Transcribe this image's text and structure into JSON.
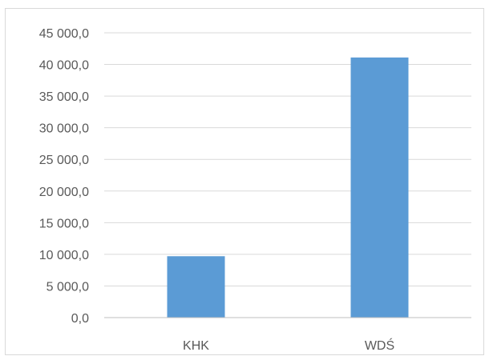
{
  "chart_data": {
    "type": "bar",
    "categories": [
      "KHK",
      "WDŚ"
    ],
    "values": [
      9700,
      41100
    ],
    "ylim": [
      0,
      45000
    ],
    "y_ticks": [
      0,
      5000,
      10000,
      15000,
      20000,
      25000,
      30000,
      35000,
      40000,
      45000
    ],
    "y_tick_labels": [
      "0,0",
      "5 000,0",
      "10 000,0",
      "15 000,0",
      "20 000,0",
      "25 000,0",
      "30 000,0",
      "35 000,0",
      "40 000,0",
      "45 000,0"
    ],
    "grid": true,
    "legend": "none",
    "bar_color": "#5b9bd5"
  }
}
